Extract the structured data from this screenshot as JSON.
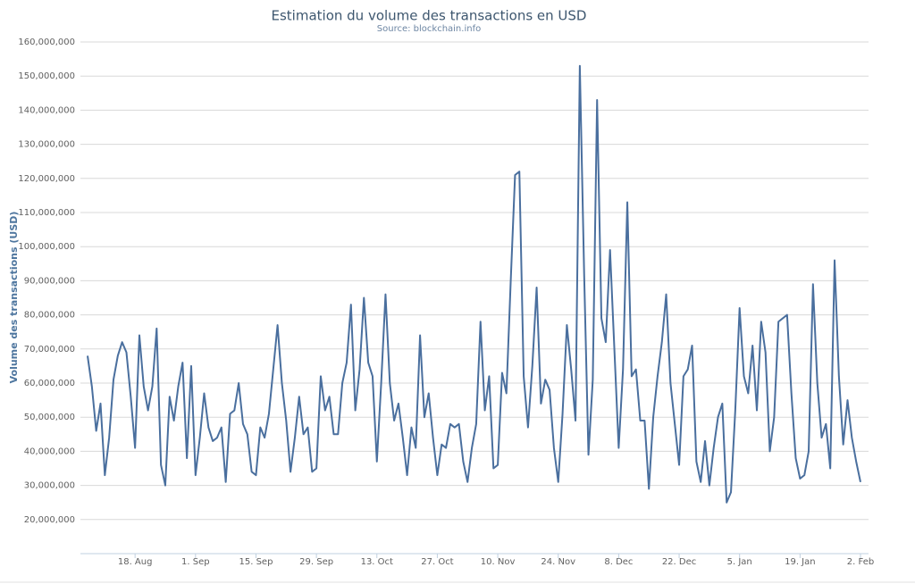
{
  "chart_data": {
    "type": "line",
    "title": "Estimation du volume des transactions en USD",
    "subtitle": "Source: blockchain.info",
    "y_label": "Volume des transactions (USD)",
    "grid": true,
    "ylim": [
      10000000,
      160000000
    ],
    "yticks": [
      {
        "value": 20000000,
        "label": "20,000,000"
      },
      {
        "value": 30000000,
        "label": "30,000,000"
      },
      {
        "value": 40000000,
        "label": "40,000,000"
      },
      {
        "value": 50000000,
        "label": "50,000,000"
      },
      {
        "value": 60000000,
        "label": "60,000,000"
      },
      {
        "value": 70000000,
        "label": "70,000,000"
      },
      {
        "value": 80000000,
        "label": "80,000,000"
      },
      {
        "value": 90000000,
        "label": "90,000,000"
      },
      {
        "value": 100000000,
        "label": "100,000,000"
      },
      {
        "value": 110000000,
        "label": "110,000,000"
      },
      {
        "value": 120000000,
        "label": "120,000,000"
      },
      {
        "value": 130000000,
        "label": "130,000,000"
      },
      {
        "value": 140000000,
        "label": "140,000,000"
      },
      {
        "value": 150000000,
        "label": "150,000,000"
      },
      {
        "value": 160000000,
        "label": "160,000,000"
      }
    ],
    "xticks": [
      "18. Aug",
      "1. Sep",
      "15. Sep",
      "29. Sep",
      "13. Oct",
      "27. Oct",
      "10. Nov",
      "24. Nov",
      "8. Dec",
      "22. Dec",
      "5. Jan",
      "19. Jan",
      "2. Feb"
    ],
    "x": [
      "7. Aug",
      "8. Aug",
      "9. Aug",
      "10. Aug",
      "11. Aug",
      "12. Aug",
      "13. Aug",
      "14. Aug",
      "15. Aug",
      "16. Aug",
      "17. Aug",
      "18. Aug",
      "19. Aug",
      "20. Aug",
      "21. Aug",
      "22. Aug",
      "23. Aug",
      "24. Aug",
      "25. Aug",
      "26. Aug",
      "27. Aug",
      "28. Aug",
      "29. Aug",
      "30. Aug",
      "31. Aug",
      "1. Sep",
      "2. Sep",
      "3. Sep",
      "4. Sep",
      "5. Sep",
      "6. Sep",
      "7. Sep",
      "8. Sep",
      "9. Sep",
      "10. Sep",
      "11. Sep",
      "12. Sep",
      "13. Sep",
      "14. Sep",
      "15. Sep",
      "16. Sep",
      "17. Sep",
      "18. Sep",
      "19. Sep",
      "20. Sep",
      "21. Sep",
      "22. Sep",
      "23. Sep",
      "24. Sep",
      "25. Sep",
      "26. Sep",
      "27. Sep",
      "28. Sep",
      "29. Sep",
      "30. Sep",
      "1. Oct",
      "2. Oct",
      "3. Oct",
      "4. Oct",
      "5. Oct",
      "6. Oct",
      "7. Oct",
      "8. Oct",
      "9. Oct",
      "10. Oct",
      "11. Oct",
      "12. Oct",
      "13. Oct",
      "14. Oct",
      "15. Oct",
      "16. Oct",
      "17. Oct",
      "18. Oct",
      "19. Oct",
      "20. Oct",
      "21. Oct",
      "22. Oct",
      "23. Oct",
      "24. Oct",
      "25. Oct",
      "26. Oct",
      "27. Oct",
      "28. Oct",
      "29. Oct",
      "30. Oct",
      "31. Oct",
      "1. Nov",
      "2. Nov",
      "3. Nov",
      "4. Nov",
      "5. Nov",
      "6. Nov",
      "7. Nov",
      "8. Nov",
      "9. Nov",
      "10. Nov",
      "11. Nov",
      "12. Nov",
      "13. Nov",
      "14. Nov",
      "15. Nov",
      "16. Nov",
      "17. Nov",
      "18. Nov",
      "19. Nov",
      "20. Nov",
      "21. Nov",
      "22. Nov",
      "23. Nov",
      "24. Nov",
      "25. Nov",
      "26. Nov",
      "27. Nov",
      "28. Nov",
      "29. Nov",
      "30. Nov",
      "1. Dec",
      "2. Dec",
      "3. Dec",
      "4. Dec",
      "5. Dec",
      "6. Dec",
      "7. Dec",
      "8. Dec",
      "9. Dec",
      "10. Dec",
      "11. Dec",
      "12. Dec",
      "13. Dec",
      "14. Dec",
      "15. Dec",
      "16. Dec",
      "17. Dec",
      "18. Dec",
      "19. Dec",
      "20. Dec",
      "21. Dec",
      "22. Dec",
      "23. Dec",
      "24. Dec",
      "25. Dec",
      "26. Dec",
      "27. Dec",
      "28. Dec",
      "29. Dec",
      "30. Dec",
      "31. Dec",
      "1. Jan",
      "2. Jan",
      "3. Jan",
      "4. Jan",
      "5. Jan",
      "6. Jan",
      "7. Jan",
      "8. Jan",
      "9. Jan",
      "10. Jan",
      "11. Jan",
      "12. Jan",
      "13. Jan",
      "14. Jan",
      "15. Jan",
      "16. Jan",
      "17. Jan",
      "18. Jan",
      "19. Jan",
      "20. Jan",
      "21. Jan",
      "22. Jan",
      "23. Jan",
      "24. Jan",
      "25. Jan",
      "26. Jan",
      "27. Jan",
      "28. Jan",
      "29. Jan",
      "30. Jan",
      "31. Jan",
      "1. Feb",
      "2. Feb"
    ],
    "series": [
      {
        "name": "Volume des transactions",
        "color": "#4a6f9e",
        "values": [
          68000000,
          59000000,
          46000000,
          54000000,
          33000000,
          44000000,
          61000000,
          68000000,
          72000000,
          69000000,
          56000000,
          41000000,
          74000000,
          59000000,
          52000000,
          59000000,
          76000000,
          36000000,
          30000000,
          56000000,
          49000000,
          59000000,
          66000000,
          38000000,
          65000000,
          33000000,
          44000000,
          57000000,
          47000000,
          43000000,
          44000000,
          47000000,
          31000000,
          51000000,
          52000000,
          60000000,
          48000000,
          45000000,
          34000000,
          33000000,
          47000000,
          44000000,
          51000000,
          64000000,
          77000000,
          60000000,
          49000000,
          34000000,
          44000000,
          56000000,
          45000000,
          47000000,
          34000000,
          35000000,
          62000000,
          52000000,
          56000000,
          45000000,
          45000000,
          60000000,
          66000000,
          83000000,
          52000000,
          64000000,
          85000000,
          66000000,
          62000000,
          37000000,
          60000000,
          86000000,
          60000000,
          49000000,
          54000000,
          44000000,
          33000000,
          47000000,
          41000000,
          74000000,
          50000000,
          57000000,
          44000000,
          33000000,
          42000000,
          41000000,
          48000000,
          47000000,
          48000000,
          37000000,
          31000000,
          41000000,
          48000000,
          78000000,
          52000000,
          62000000,
          35000000,
          36000000,
          63000000,
          57000000,
          90000000,
          121000000,
          122000000,
          62000000,
          47000000,
          65000000,
          88000000,
          54000000,
          61000000,
          58000000,
          41000000,
          31000000,
          51000000,
          77000000,
          64000000,
          49000000,
          153000000,
          92000000,
          39000000,
          61000000,
          143000000,
          79000000,
          72000000,
          99000000,
          70000000,
          41000000,
          64000000,
          113000000,
          62000000,
          64000000,
          49000000,
          49000000,
          29000000,
          50000000,
          62000000,
          72000000,
          86000000,
          60000000,
          48000000,
          36000000,
          62000000,
          64000000,
          71000000,
          37000000,
          31000000,
          43000000,
          30000000,
          41000000,
          50000000,
          54000000,
          25000000,
          28000000,
          52000000,
          82000000,
          62000000,
          57000000,
          71000000,
          52000000,
          78000000,
          69000000,
          40000000,
          50000000,
          78000000,
          79000000,
          80000000,
          57000000,
          38000000,
          32000000,
          33000000,
          40000000,
          89000000,
          60000000,
          44000000,
          48000000,
          35000000,
          96000000,
          62000000,
          42000000,
          55000000,
          44000000,
          37000000,
          31000000
        ]
      }
    ]
  }
}
